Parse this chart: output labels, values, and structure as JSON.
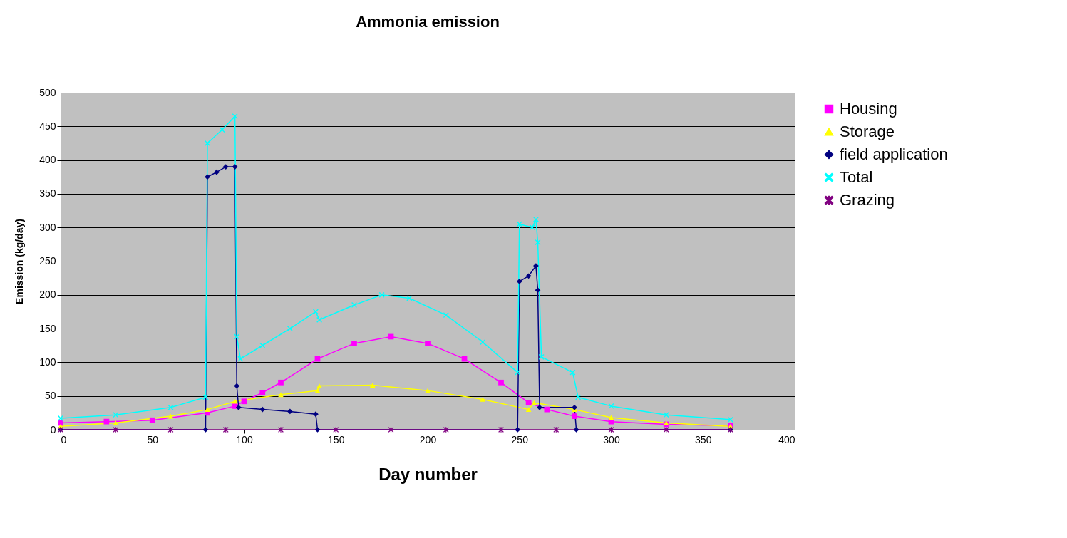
{
  "chart_data": {
    "type": "line",
    "title": "Ammonia emission",
    "xlabel": "Day number",
    "ylabel": "Emission (kg/day)",
    "xlim": [
      0,
      400
    ],
    "xticks": [
      0,
      50,
      100,
      150,
      200,
      250,
      300,
      350,
      400
    ],
    "ylim": [
      0,
      500
    ],
    "yticks": [
      0,
      50,
      100,
      150,
      200,
      250,
      300,
      350,
      400,
      450,
      500
    ],
    "grid": "y",
    "legend": "right",
    "line_style": "solid",
    "series": [
      {
        "name": "Housing",
        "color": "#ff00ff",
        "marker": "square",
        "x": [
          0,
          25,
          50,
          80,
          95,
          100,
          110,
          120,
          140,
          160,
          180,
          200,
          220,
          240,
          255,
          265,
          280,
          300,
          330,
          365
        ],
        "values": [
          10,
          12,
          14,
          25,
          35,
          42,
          55,
          70,
          105,
          128,
          138,
          128,
          105,
          70,
          40,
          30,
          20,
          12,
          8,
          6
        ]
      },
      {
        "name": "Storage",
        "color": "#ffff00",
        "marker": "triangle",
        "x": [
          0,
          30,
          60,
          80,
          95,
          120,
          140,
          141,
          170,
          200,
          230,
          255,
          258,
          280,
          300,
          330,
          365
        ],
        "values": [
          5,
          10,
          20,
          30,
          42,
          52,
          58,
          65,
          66,
          58,
          45,
          30,
          40,
          30,
          18,
          10,
          5
        ]
      },
      {
        "name": "field application",
        "color": "#000080",
        "marker": "diamond",
        "x": [
          0,
          79,
          80,
          85,
          90,
          95,
          96,
          97,
          110,
          125,
          139,
          140,
          249,
          250,
          255,
          259,
          260,
          261,
          280,
          281,
          365
        ],
        "values": [
          0,
          0,
          375,
          382,
          390,
          390,
          65,
          33,
          30,
          27,
          23,
          0,
          0,
          220,
          228,
          243,
          207,
          33,
          33,
          0,
          0
        ]
      },
      {
        "name": "Total",
        "color": "#00ffff",
        "marker": "cross",
        "x": [
          0,
          30,
          60,
          79,
          80,
          88,
          95,
          96,
          98,
          110,
          125,
          139,
          141,
          160,
          175,
          190,
          210,
          230,
          249,
          250,
          257,
          259,
          260,
          262,
          279,
          282,
          300,
          330,
          365
        ],
        "values": [
          17,
          22,
          33,
          48,
          425,
          445,
          465,
          138,
          105,
          125,
          150,
          175,
          163,
          185,
          200,
          195,
          170,
          130,
          85,
          305,
          300,
          312,
          278,
          108,
          85,
          48,
          35,
          22,
          15
        ]
      },
      {
        "name": "Grazing",
        "color": "#800080",
        "marker": "star",
        "x": [
          0,
          30,
          60,
          90,
          120,
          150,
          180,
          210,
          240,
          270,
          300,
          330,
          365
        ],
        "values": [
          0,
          0,
          0,
          0,
          0,
          0,
          0,
          0,
          0,
          0,
          0,
          0,
          0
        ]
      }
    ]
  }
}
